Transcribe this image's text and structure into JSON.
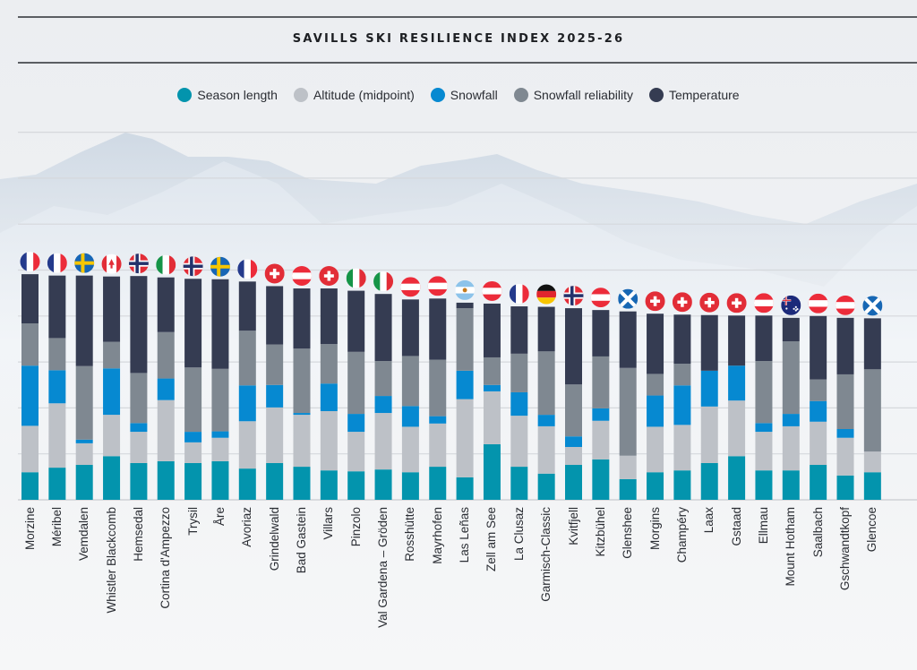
{
  "title": "SAVILLS SKI RESILIENCE INDEX 2025-26",
  "chart_data": {
    "type": "bar",
    "stacked": true,
    "title": "SAVILLS SKI RESILIENCE INDEX 2025-26",
    "xlabel": "",
    "ylabel": "",
    "ylim": [
      0,
      8
    ],
    "grid": true,
    "legend_position": "top-center",
    "categories": [
      "Morzine",
      "Méribel",
      "Vemdalen",
      "Whistler Blackcomb",
      "Hemsedal",
      "Cortina d'Ampezzo",
      "Trysil",
      "Åre",
      "Avoriaz",
      "Grindelwald",
      "Bad Gastein",
      "Villars",
      "Pinzolo",
      "Val Gardena – Gröden",
      "Rosshütte",
      "Mayrhofen",
      "Las Leñas",
      "Zell am See",
      "La Clusaz",
      "Garmisch-Classic",
      "Kvitfjell",
      "Kitzbühel",
      "Glenshee",
      "Morgins",
      "Champéry",
      "Laax",
      "Gstaad",
      "Ellmau",
      "Mount Hotham",
      "Saalbach",
      "Gschwandtkopf",
      "Glencoe"
    ],
    "countries": [
      "france",
      "france",
      "sweden",
      "canada",
      "norway",
      "italy",
      "norway",
      "sweden",
      "france",
      "switzerland",
      "austria",
      "switzerland",
      "italy",
      "italy",
      "austria",
      "austria",
      "argentina",
      "austria",
      "france",
      "germany",
      "norway",
      "austria",
      "scotland",
      "switzerland",
      "switzerland",
      "switzerland",
      "switzerland",
      "austria",
      "australia",
      "austria",
      "austria",
      "scotland"
    ],
    "series": [
      {
        "name": "Season length",
        "color": "#0394ad",
        "values": [
          0.6,
          0.7,
          0.76,
          0.95,
          0.8,
          0.84,
          0.8,
          0.84,
          0.68,
          0.8,
          0.72,
          0.64,
          0.62,
          0.66,
          0.6,
          0.72,
          0.49,
          1.21,
          0.72,
          0.57,
          0.76,
          0.88,
          0.45,
          0.6,
          0.64,
          0.8,
          0.95,
          0.64,
          0.64,
          0.76,
          0.53,
          0.6
        ]
      },
      {
        "name": "Altitude (midpoint)",
        "color": "#bdc1c7",
        "values": [
          1.01,
          1.4,
          0.47,
          0.9,
          0.68,
          1.33,
          0.45,
          0.51,
          1.03,
          1.21,
          1.13,
          1.29,
          0.86,
          1.23,
          0.99,
          0.94,
          1.7,
          1.15,
          1.11,
          1.03,
          0.39,
          0.84,
          0.51,
          0.99,
          0.99,
          1.23,
          1.21,
          0.84,
          0.96,
          0.94,
          0.82,
          0.45
        ]
      },
      {
        "name": "Snowfall",
        "color": "#0689d1",
        "values": [
          1.31,
          0.72,
          0.08,
          1.01,
          0.19,
          0.47,
          0.23,
          0.14,
          0.78,
          0.49,
          0.04,
          0.6,
          0.39,
          0.37,
          0.45,
          0.16,
          0.62,
          0.14,
          0.51,
          0.25,
          0.23,
          0.27,
          0.0,
          0.68,
          0.86,
          0.78,
          0.76,
          0.19,
          0.27,
          0.45,
          0.19,
          0.0
        ]
      },
      {
        "name": "Snowfall reliability",
        "color": "#7f8891",
        "values": [
          0.92,
          0.7,
          1.6,
          0.58,
          1.09,
          1.01,
          1.4,
          1.36,
          1.19,
          0.88,
          1.4,
          0.86,
          1.35,
          0.76,
          1.09,
          1.23,
          1.36,
          0.6,
          0.84,
          1.38,
          1.13,
          1.13,
          1.91,
          0.47,
          0.47,
          0.0,
          0.0,
          1.35,
          1.58,
          0.47,
          1.19,
          1.79
        ]
      },
      {
        "name": "Temperature",
        "color": "#353c52",
        "values": [
          1.07,
          1.36,
          1.97,
          1.42,
          2.11,
          1.19,
          1.93,
          1.95,
          1.07,
          1.27,
          1.31,
          1.21,
          1.33,
          1.46,
          1.23,
          1.33,
          0.12,
          1.17,
          1.03,
          0.97,
          1.66,
          1.01,
          1.23,
          1.31,
          1.07,
          1.21,
          1.09,
          0.99,
          0.51,
          1.38,
          1.23,
          1.11
        ]
      }
    ]
  }
}
